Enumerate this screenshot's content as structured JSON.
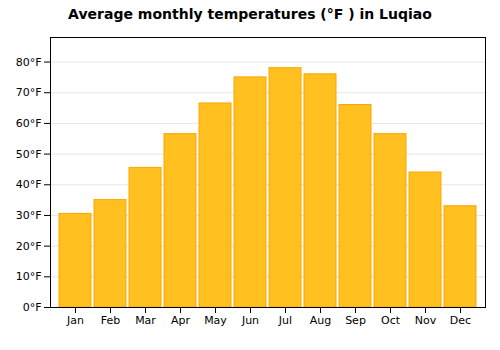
{
  "chart_data": {
    "type": "bar",
    "title": "Average monthly temperatures (°F ) in Luqiao",
    "categories": [
      "Jan",
      "Feb",
      "Mar",
      "Apr",
      "May",
      "Jun",
      "Jul",
      "Aug",
      "Sep",
      "Oct",
      "Nov",
      "Dec"
    ],
    "values": [
      30.5,
      35.0,
      45.5,
      56.5,
      66.5,
      75.0,
      78.0,
      76.0,
      66.0,
      56.5,
      44.0,
      33.0
    ],
    "color": "#FFC020",
    "ylim": [
      0,
      88
    ],
    "yticks": [
      {
        "value": 0,
        "label": "0°F"
      },
      {
        "value": 10,
        "label": "10°F"
      },
      {
        "value": 20,
        "label": "20°F"
      },
      {
        "value": 30,
        "label": "30°F"
      },
      {
        "value": 40,
        "label": "40°F"
      },
      {
        "value": 50,
        "label": "50°F"
      },
      {
        "value": 60,
        "label": "60°F"
      },
      {
        "value": 70,
        "label": "70°F"
      },
      {
        "value": 80,
        "label": "80°F"
      }
    ],
    "grid": true
  }
}
